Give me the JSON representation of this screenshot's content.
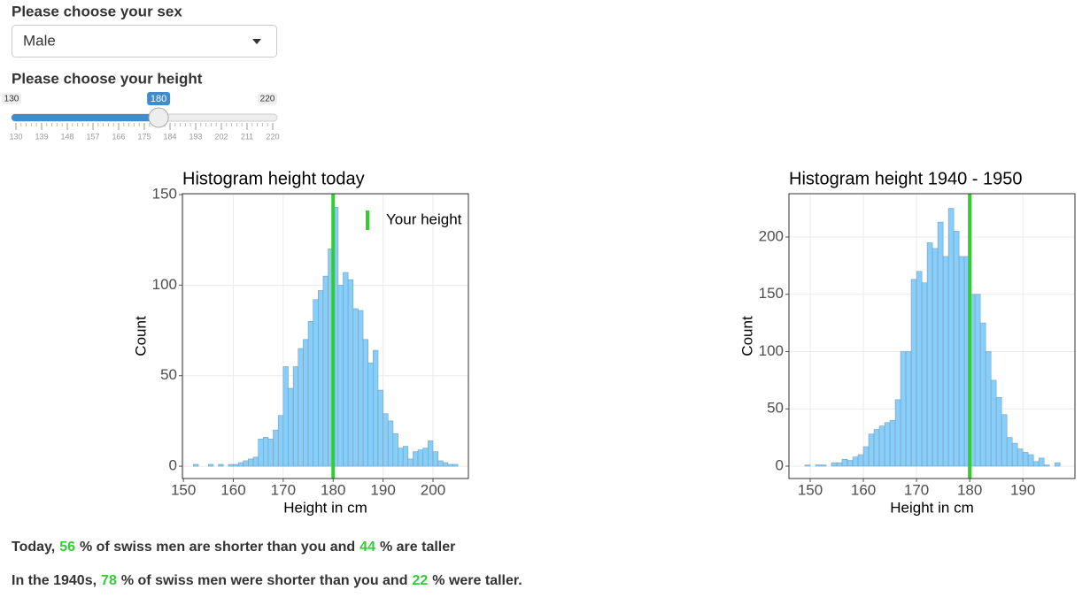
{
  "sex_input": {
    "label": "Please choose your sex",
    "value": "Male"
  },
  "height_input": {
    "label": "Please choose your height",
    "min": 130,
    "max": 220,
    "value": 180,
    "ticks": [
      130,
      139,
      148,
      157,
      166,
      175,
      184,
      193,
      202,
      211,
      220
    ]
  },
  "chart_data": [
    {
      "type": "histogram",
      "title": "Histogram height today",
      "xlabel": "Height in cm",
      "ylabel": "Count",
      "bins": [
        152,
        153,
        154,
        155,
        156,
        157,
        158,
        159,
        160,
        161,
        162,
        163,
        164,
        165,
        166,
        167,
        168,
        169,
        170,
        171,
        172,
        173,
        174,
        175,
        176,
        177,
        178,
        179,
        180,
        181,
        182,
        183,
        184,
        185,
        186,
        187,
        188,
        189,
        190,
        191,
        192,
        193,
        194,
        195,
        196,
        197,
        198,
        199,
        200,
        201,
        202,
        203,
        204,
        205
      ],
      "values": [
        1,
        0,
        0,
        1,
        0,
        1,
        0,
        1,
        1,
        2,
        3,
        4,
        5,
        15,
        16,
        15,
        20,
        28,
        55,
        43,
        55,
        65,
        70,
        80,
        92,
        97,
        105,
        120,
        143,
        100,
        107,
        103,
        87,
        86,
        70,
        57,
        64,
        42,
        29,
        25,
        18,
        10,
        11,
        4,
        8,
        9,
        10,
        14,
        8,
        3,
        2,
        1,
        1
      ],
      "color": "#87CEFA",
      "xlim": [
        149.8,
        207.1
      ],
      "ylim": [
        -6.8,
        150.5
      ],
      "xticks": [
        150,
        160,
        170,
        180,
        190,
        200
      ],
      "yticks": [
        0,
        50,
        100,
        150
      ],
      "grid": true,
      "marker": {
        "name": "Your height",
        "color": "#33cc33"
      },
      "legend": "top-right"
    },
    {
      "type": "histogram",
      "title": "Histogram height 1940 - 1950",
      "xlabel": "Height in cm",
      "ylabel": "Count",
      "bins": [
        149,
        150,
        151,
        152,
        153,
        154,
        155,
        156,
        157,
        158,
        159,
        160,
        161,
        162,
        163,
        164,
        165,
        166,
        167,
        168,
        169,
        170,
        171,
        172,
        173,
        174,
        175,
        176,
        177,
        178,
        179,
        180,
        181,
        182,
        183,
        184,
        185,
        186,
        187,
        188,
        189,
        190,
        191,
        192,
        193,
        194,
        195,
        196,
        197
      ],
      "values": [
        1,
        0,
        1,
        1,
        0,
        3,
        3,
        6,
        5,
        8,
        10,
        17,
        28,
        32,
        35,
        38,
        40,
        58,
        100,
        100,
        163,
        170,
        160,
        195,
        190,
        213,
        183,
        225,
        205,
        183,
        183,
        150,
        150,
        125,
        100,
        75,
        60,
        45,
        25,
        20,
        15,
        12,
        10,
        4,
        7,
        1,
        0,
        3
      ],
      "color": "#87CEFA",
      "xlim": [
        146,
        199.8
      ],
      "ylim": [
        -10.8,
        237.8
      ],
      "xticks": [
        150,
        160,
        170,
        180,
        190
      ],
      "yticks": [
        0,
        50,
        100,
        150,
        200
      ],
      "grid": true,
      "marker": {
        "color": "#33cc33"
      }
    }
  ],
  "results": [
    {
      "prefix": "Today,",
      "shorter": 56,
      "middle": "% of swiss men are shorter than you and",
      "taller": 44,
      "suffix": "% are taller"
    },
    {
      "prefix": "In the 1940s,",
      "shorter": 78,
      "middle": "% of swiss men were shorter than you and",
      "taller": 22,
      "suffix": "% were taller."
    }
  ]
}
